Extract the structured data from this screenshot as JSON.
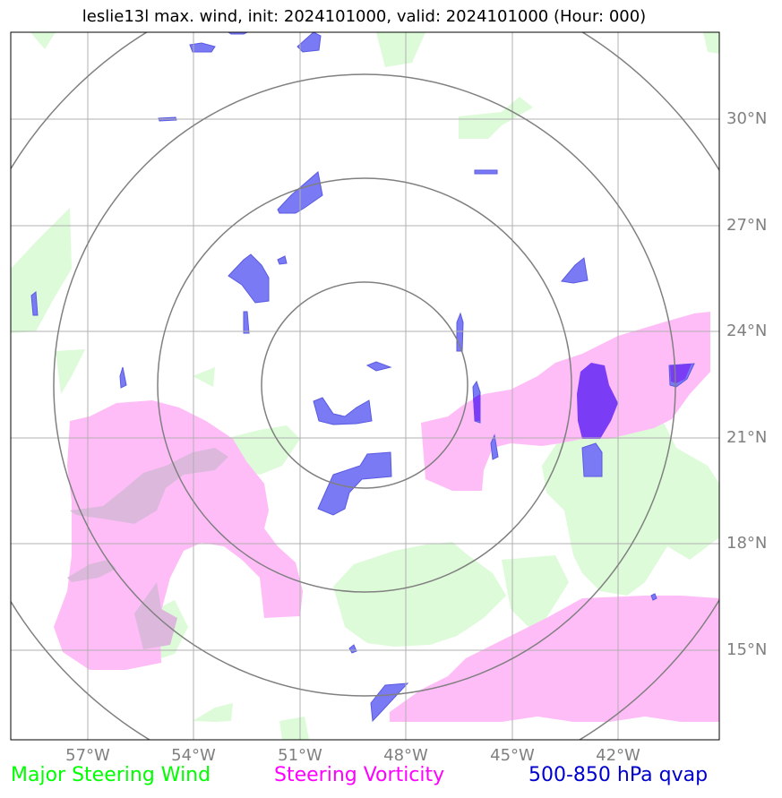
{
  "title": "leslie13l max. wind, init: 2024101000, valid: 2024101000 (Hour: 000)",
  "lat_labels": [
    "30°N",
    "27°N",
    "24°N",
    "21°N",
    "18°N",
    "15°N"
  ],
  "lon_labels": [
    "57°W",
    "54°W",
    "51°W",
    "48°W",
    "45°W",
    "42°W"
  ],
  "legend": {
    "green": {
      "label": "Major Steering Wind",
      "color": "#00ff00"
    },
    "purple": {
      "label": "Steering Vorticity",
      "color": "#ff00ff"
    },
    "blue": {
      "label": "500-850 hPa qvap",
      "color": "#0000cc"
    }
  },
  "colors": {
    "green_fill": "#ddfbd8",
    "magenta_fill": "#ffbdf8",
    "blue_fill": "#7a7af5",
    "grid": "#b0b0b0",
    "rings": "#808080"
  }
}
